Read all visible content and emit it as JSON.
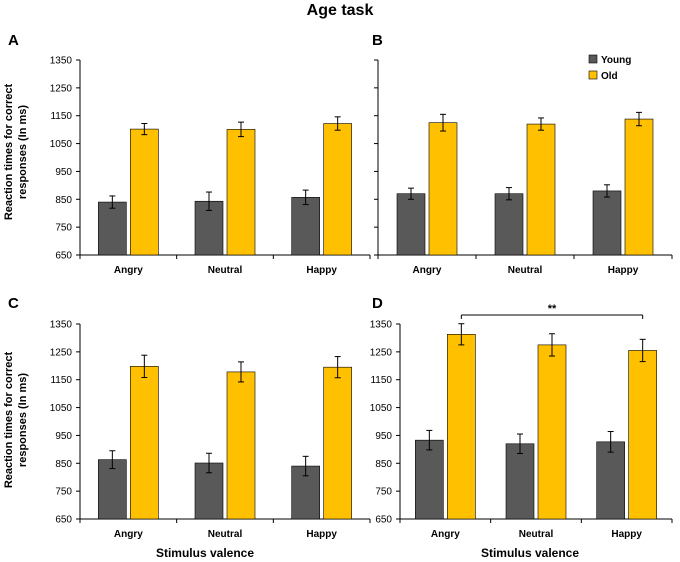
{
  "figure_title": "Age task",
  "y_axis_label_line1": "Reaction times for correct",
  "y_axis_label_line2": "responses (In ms)",
  "x_axis_label": "Stimulus valence",
  "legend": {
    "young": "Young",
    "old": "Old"
  },
  "colors": {
    "young": "#595959",
    "old": "#ffc000",
    "axis": "#000000"
  },
  "significance": {
    "panel": "D",
    "label": "**",
    "from": "Angry",
    "to": "Happy"
  },
  "chart_data": [
    {
      "type": "bar",
      "panel": "A",
      "categories": [
        "Angry",
        "Neutral",
        "Happy"
      ],
      "ylim": [
        650,
        1350
      ],
      "yticks": [
        650,
        750,
        850,
        950,
        1050,
        1150,
        1250,
        1350
      ],
      "series": [
        {
          "name": "Young",
          "values": [
            840,
            843,
            857
          ],
          "errors": [
            22,
            33,
            26
          ]
        },
        {
          "name": "Old",
          "values": [
            1102,
            1101,
            1122
          ],
          "errors": [
            20,
            26,
            24
          ]
        }
      ]
    },
    {
      "type": "bar",
      "panel": "B",
      "categories": [
        "Angry",
        "Neutral",
        "Happy"
      ],
      "ylim": [
        650,
        1350
      ],
      "yticks": [
        650,
        750,
        850,
        950,
        1050,
        1150,
        1250,
        1350
      ],
      "series": [
        {
          "name": "Young",
          "values": [
            870,
            870,
            880
          ],
          "errors": [
            20,
            22,
            22
          ]
        },
        {
          "name": "Old",
          "values": [
            1125,
            1120,
            1138
          ],
          "errors": [
            30,
            22,
            24
          ]
        }
      ]
    },
    {
      "type": "bar",
      "panel": "C",
      "categories": [
        "Angry",
        "Neutral",
        "Happy"
      ],
      "ylim": [
        650,
        1350
      ],
      "yticks": [
        650,
        750,
        850,
        950,
        1050,
        1150,
        1250,
        1350
      ],
      "series": [
        {
          "name": "Young",
          "values": [
            863,
            851,
            840
          ],
          "errors": [
            32,
            35,
            35
          ]
        },
        {
          "name": "Old",
          "values": [
            1198,
            1178,
            1195
          ],
          "errors": [
            40,
            36,
            38
          ]
        }
      ]
    },
    {
      "type": "bar",
      "panel": "D",
      "categories": [
        "Angry",
        "Neutral",
        "Happy"
      ],
      "ylim": [
        650,
        1350
      ],
      "yticks": [
        650,
        750,
        850,
        950,
        1050,
        1150,
        1250,
        1350
      ],
      "series": [
        {
          "name": "Young",
          "values": [
            933,
            920,
            927
          ],
          "errors": [
            35,
            35,
            37
          ]
        },
        {
          "name": "Old",
          "values": [
            1313,
            1275,
            1255
          ],
          "errors": [
            38,
            40,
            40
          ]
        }
      ]
    }
  ]
}
